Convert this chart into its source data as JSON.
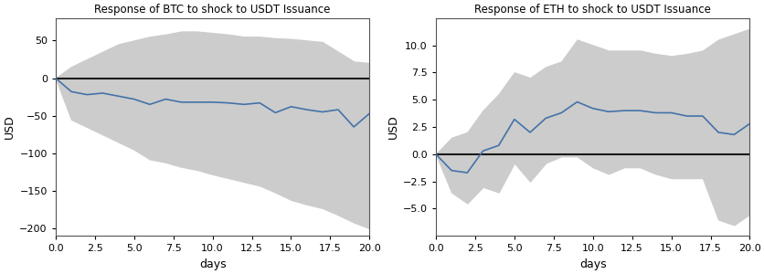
{
  "btc": {
    "title": "Response of BTC to shock to USDT Issuance",
    "days": [
      0,
      1,
      2,
      3,
      4,
      5,
      6,
      7,
      8,
      9,
      10,
      11,
      12,
      13,
      14,
      15,
      16,
      17,
      18,
      19,
      20
    ],
    "irf": [
      0,
      -18,
      -22,
      -20,
      -24,
      -28,
      -35,
      -28,
      -32,
      -32,
      -32,
      -33,
      -35,
      -33,
      -46,
      -38,
      -42,
      -45,
      -42,
      -65,
      -47
    ],
    "upper": [
      0,
      15,
      25,
      35,
      45,
      50,
      55,
      58,
      62,
      62,
      60,
      58,
      55,
      55,
      53,
      52,
      50,
      48,
      35,
      22,
      20
    ],
    "lower": [
      0,
      -55,
      -65,
      -75,
      -85,
      -95,
      -108,
      -112,
      -118,
      -122,
      -128,
      -133,
      -138,
      -143,
      -152,
      -162,
      -168,
      -173,
      -182,
      -192,
      -200
    ],
    "ylim": [
      -210,
      80
    ],
    "yticks": [
      50,
      0,
      -50,
      -100,
      -150,
      -200
    ],
    "ylabel": "USD",
    "xlabel": "days"
  },
  "eth": {
    "title": "Response of ETH to shock to USDT Issuance",
    "days": [
      0,
      1,
      2,
      3,
      4,
      5,
      6,
      7,
      8,
      9,
      10,
      11,
      12,
      13,
      14,
      15,
      16,
      17,
      18,
      19,
      20
    ],
    "irf": [
      0,
      -1.5,
      -1.7,
      0.3,
      0.8,
      3.2,
      2.0,
      3.3,
      3.8,
      4.8,
      4.2,
      3.9,
      4.0,
      4.0,
      3.8,
      3.8,
      3.5,
      3.5,
      2.0,
      1.8,
      2.8
    ],
    "upper": [
      0,
      1.5,
      2.0,
      4.0,
      5.5,
      7.5,
      7.0,
      8.0,
      8.5,
      10.5,
      10.0,
      9.5,
      9.5,
      9.5,
      9.2,
      9.0,
      9.2,
      9.5,
      10.5,
      11.0,
      11.5
    ],
    "lower": [
      0,
      -3.5,
      -4.5,
      -3.0,
      -3.5,
      -0.8,
      -2.5,
      -0.8,
      -0.2,
      -0.2,
      -1.2,
      -1.8,
      -1.2,
      -1.2,
      -1.8,
      -2.2,
      -2.2,
      -2.2,
      -6.0,
      -6.5,
      -5.5
    ],
    "ylim": [
      -7.5,
      12.5
    ],
    "yticks": [
      10.0,
      7.5,
      5.0,
      2.5,
      0.0,
      -2.5,
      -5.0
    ],
    "ylabel": "USD",
    "xlabel": "days"
  },
  "fill_color": "#cccccc",
  "line_color": "#4472a8",
  "hline_color": "#1a1a1a",
  "bg_color": "#ffffff"
}
